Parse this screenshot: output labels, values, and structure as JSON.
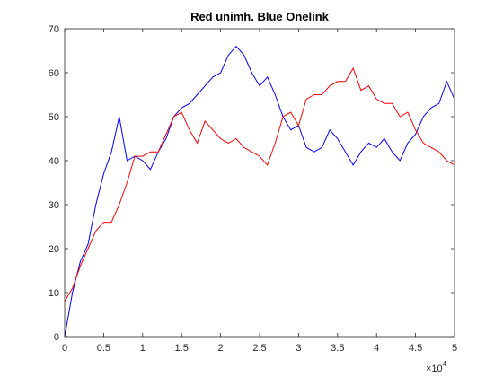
{
  "chart_data": {
    "type": "line",
    "title": "Red unimh. Blue Onelink",
    "x": [
      0,
      1000,
      2000,
      3000,
      4000,
      5000,
      6000,
      7000,
      8000,
      9000,
      10000,
      11000,
      12000,
      13000,
      14000,
      15000,
      16000,
      17000,
      18000,
      19000,
      20000,
      21000,
      22000,
      23000,
      24000,
      25000,
      26000,
      27000,
      28000,
      29000,
      30000,
      31000,
      32000,
      33000,
      34000,
      35000,
      36000,
      37000,
      38000,
      39000,
      40000,
      41000,
      42000,
      43000,
      44000,
      45000,
      46000,
      47000,
      48000,
      49000,
      50000
    ],
    "series": [
      {
        "color": "#0000ff",
        "values": [
          0,
          10,
          17,
          21,
          30,
          37,
          42,
          50,
          40,
          41,
          40,
          38,
          42,
          45,
          50,
          52,
          53,
          55,
          57,
          59,
          60,
          64,
          66,
          64,
          60,
          57,
          59,
          55,
          50,
          47,
          48,
          43,
          42,
          43,
          47,
          45,
          42,
          39,
          42,
          44,
          43,
          45,
          42,
          40,
          44,
          46,
          50,
          52,
          53,
          58,
          54
        ]
      },
      {
        "color": "#ff0000",
        "values": [
          8,
          11,
          16,
          20,
          24,
          26,
          26,
          30,
          35,
          41,
          41,
          42,
          42,
          46,
          50,
          51,
          47,
          44,
          49,
          47,
          45,
          44,
          45,
          43,
          42,
          41,
          39,
          44,
          50,
          51,
          48,
          54,
          55,
          55,
          57,
          58,
          58,
          61,
          56,
          57,
          54,
          53,
          53,
          50,
          51,
          47,
          44,
          43,
          42,
          40,
          39
        ]
      }
    ],
    "xlim": [
      0,
      50000
    ],
    "xticks": [
      0,
      {
        "value": 5000,
        "label": "0.5"
      },
      {
        "value": 10000,
        "label": "1"
      },
      {
        "value": 15000,
        "label": "1.5"
      },
      {
        "value": 20000,
        "label": "2"
      },
      {
        "value": 25000,
        "label": "2.5"
      },
      {
        "value": 30000,
        "label": "3"
      },
      {
        "value": 35000,
        "label": "3.5"
      },
      {
        "value": 40000,
        "label": "4"
      },
      {
        "value": 45000,
        "label": "4.5"
      },
      {
        "value": 50000,
        "label": "5"
      }
    ],
    "x_exponent": {
      "base": "×10",
      "power": "4"
    },
    "ylim": [
      0,
      70
    ],
    "yticks": [
      0,
      10,
      20,
      30,
      40,
      50,
      60,
      70
    ]
  }
}
